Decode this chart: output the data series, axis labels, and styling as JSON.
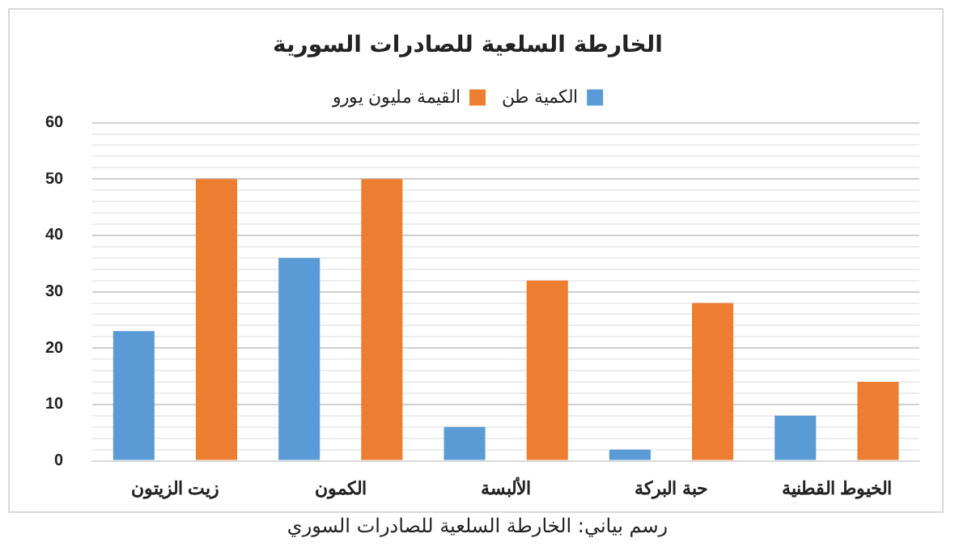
{
  "chart_data": {
    "type": "bar",
    "title": "الخارطة السلعية للصادرات السورية",
    "categories": [
      "زيت الزيتون",
      "الكمون",
      "الألبسة",
      "حبة البركة",
      "الخيوط القطنية"
    ],
    "series": [
      {
        "name": "الكمية طن",
        "color": "#5b9bd5",
        "values": [
          23,
          36,
          6,
          2,
          8
        ]
      },
      {
        "name": "القيمة مليون يورو",
        "color": "#ed7d31",
        "values": [
          50,
          50,
          32,
          28,
          14
        ]
      }
    ],
    "ylim": [
      0,
      60
    ],
    "yticks": [
      0,
      {
        "value": 2,
        "label": null
      },
      {
        "value": 4,
        "label": null
      },
      {
        "value": 6,
        "label": null
      },
      {
        "value": 8,
        "label": null
      },
      10,
      {
        "value": 12,
        "label": null
      },
      {
        "value": 14,
        "label": null
      },
      {
        "value": 16,
        "label": null
      },
      {
        "value": 18,
        "label": null
      },
      20,
      {
        "value": 22,
        "label": null
      },
      {
        "value": 24,
        "label": null
      },
      {
        "value": 26,
        "label": null
      },
      {
        "value": 28,
        "label": null
      },
      30,
      {
        "value": 32,
        "label": null
      },
      {
        "value": 34,
        "label": null
      },
      {
        "value": 36,
        "label": null
      },
      {
        "value": 38,
        "label": null
      },
      40,
      {
        "value": 42,
        "label": null
      },
      {
        "value": 44,
        "label": null
      },
      {
        "value": 46,
        "label": null
      },
      {
        "value": 48,
        "label": null
      },
      50,
      {
        "value": 52,
        "label": null
      },
      {
        "value": 54,
        "label": null
      },
      {
        "value": 56,
        "label": null
      },
      {
        "value": 58,
        "label": null
      },
      60
    ],
    "grid": "y",
    "legend": "top",
    "annotations": [
      "رسم بياني: الخارطة السلعية للصادرات السوري"
    ]
  }
}
